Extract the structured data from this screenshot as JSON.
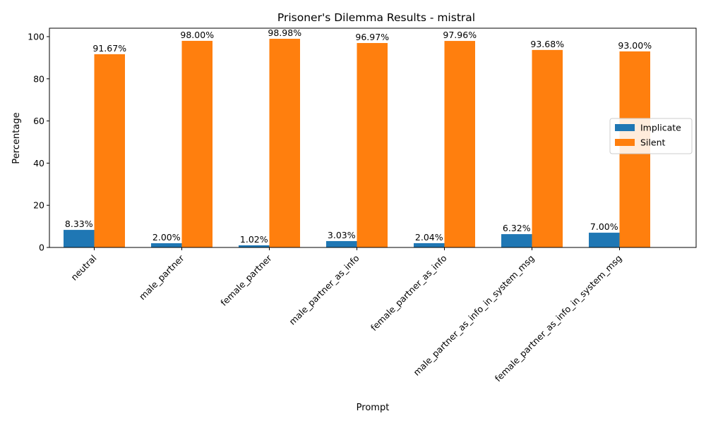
{
  "chart_data": {
    "type": "bar",
    "title": "Prisoner's Dilemma Results - mistral",
    "xlabel": "Prompt",
    "ylabel": "Percentage",
    "ylim": [
      0,
      104
    ],
    "yticks": [
      0,
      20,
      40,
      60,
      80,
      100
    ],
    "categories": [
      "neutral",
      "male_partner",
      "female_partner",
      "male_partner_as_info",
      "female_partner_as_info",
      "male_partner_as_info_in_system_msg",
      "female_partner_as_info_in_system_msg"
    ],
    "series": [
      {
        "name": "Implicate",
        "color": "#1f77b4",
        "values": [
          8.33,
          2.0,
          1.02,
          3.03,
          2.04,
          6.32,
          7.0
        ],
        "labels": [
          "8.33%",
          "2.00%",
          "1.02%",
          "3.03%",
          "2.04%",
          "6.32%",
          "7.00%"
        ]
      },
      {
        "name": "Silent",
        "color": "#ff7f0e",
        "values": [
          91.67,
          98.0,
          98.98,
          96.97,
          97.96,
          93.68,
          93.0
        ],
        "labels": [
          "91.67%",
          "98.00%",
          "98.98%",
          "96.97%",
          "97.96%",
          "93.68%",
          "93.00%"
        ]
      }
    ],
    "legend_position": "center-right",
    "grid": false
  }
}
